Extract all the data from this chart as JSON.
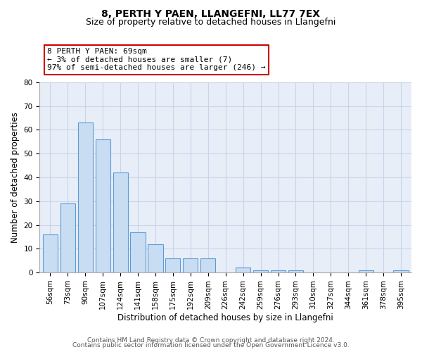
{
  "title": "8, PERTH Y PAEN, LLANGEFNI, LL77 7EX",
  "subtitle": "Size of property relative to detached houses in Llangefni",
  "xlabel": "Distribution of detached houses by size in Llangefni",
  "ylabel": "Number of detached properties",
  "bar_labels": [
    "56sqm",
    "73sqm",
    "90sqm",
    "107sqm",
    "124sqm",
    "141sqm",
    "158sqm",
    "175sqm",
    "192sqm",
    "209sqm",
    "226sqm",
    "242sqm",
    "259sqm",
    "276sqm",
    "293sqm",
    "310sqm",
    "327sqm",
    "344sqm",
    "361sqm",
    "378sqm",
    "395sqm"
  ],
  "bar_values": [
    16,
    29,
    63,
    56,
    42,
    17,
    12,
    6,
    6,
    6,
    0,
    2,
    1,
    1,
    1,
    0,
    0,
    0,
    1,
    0,
    1
  ],
  "bar_color": "#c9ddf2",
  "bar_edge_color": "#5b9bd5",
  "ylim": [
    0,
    80
  ],
  "yticks": [
    0,
    10,
    20,
    30,
    40,
    50,
    60,
    70,
    80
  ],
  "annotation_text": "8 PERTH Y PAEN: 69sqm\n← 3% of detached houses are smaller (7)\n97% of semi-detached houses are larger (246) →",
  "annotation_box_color": "#ffffff",
  "annotation_box_edge_color": "#cc0000",
  "footer_line1": "Contains HM Land Registry data © Crown copyright and database right 2024.",
  "footer_line2": "Contains public sector information licensed under the Open Government Licence v3.0.",
  "grid_color": "#c8d4e8",
  "background_color": "#e8eef8",
  "title_fontsize": 10,
  "subtitle_fontsize": 9,
  "axis_label_fontsize": 8.5,
  "tick_fontsize": 7.5,
  "annotation_fontsize": 8,
  "footer_fontsize": 6.5
}
